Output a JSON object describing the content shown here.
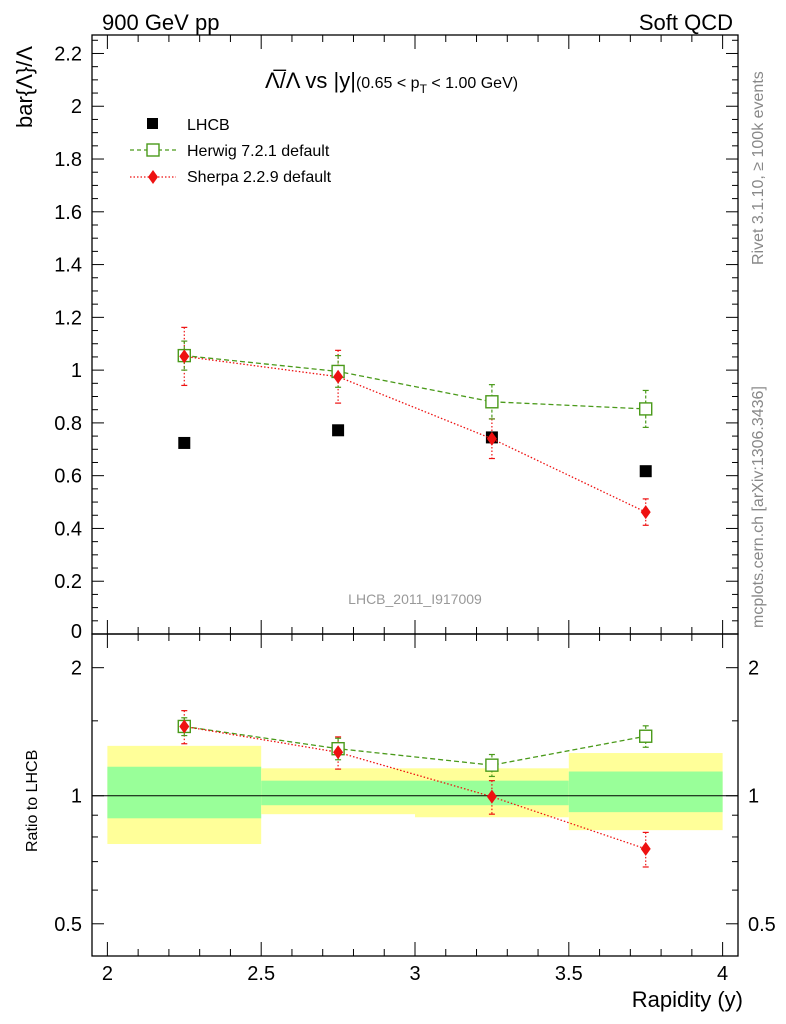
{
  "header": {
    "left": "900 GeV pp",
    "right": "Soft QCD"
  },
  "side_labels": {
    "rivet": "Rivet 3.1.10, ≥ 100k events",
    "mcplots": "mcplots.cern.ch [arXiv:1306.3436]"
  },
  "plot_title": {
    "main": "Λ̅/Λ vs |y|",
    "sub_prefix": "(0.65 < p",
    "sub_sub": "T",
    "sub_suffix": " < 1.00 GeV)"
  },
  "watermark": "LHCB_2011_I917009",
  "ylabel_top": "bar{Λ}/Λ",
  "ylabel_bottom": "Ratio to LHCB",
  "xlabel": "Rapidity (y)",
  "colors": {
    "herwig": "#4a9a1a",
    "sherpa": "#ee1111",
    "band_outer": "#ffff99",
    "band_inner": "#99ff99"
  },
  "chart_data": [
    {
      "type": "scatter",
      "panel": "main",
      "ylim": [
        0,
        2.27
      ],
      "xlim": [
        1.95,
        4.05
      ],
      "yticks": [
        "0",
        "0.2",
        "0.4",
        "0.6",
        "0.8",
        "1",
        "1.2",
        "1.4",
        "1.6",
        "1.8",
        "2",
        "2.2"
      ],
      "legend_position": "top-left",
      "series": [
        {
          "name": "LHCB",
          "x": [
            2.25,
            2.75,
            3.25,
            3.75
          ],
          "y": [
            0.724,
            0.772,
            0.745,
            0.617
          ],
          "bins": [
            [
              2.0,
              2.5
            ],
            [
              2.5,
              3.0
            ],
            [
              3.0,
              3.5
            ],
            [
              3.5,
              4.0
            ]
          ]
        },
        {
          "name": "Herwig 7.2.1 default",
          "x": [
            2.25,
            2.75,
            3.25,
            3.75
          ],
          "y": [
            1.055,
            0.995,
            0.88,
            0.853
          ],
          "yerr": [
            0.055,
            0.06,
            0.065,
            0.07
          ]
        },
        {
          "name": "Sherpa 2.2.9 default",
          "x": [
            2.25,
            2.75,
            3.25,
            3.75
          ],
          "y": [
            1.052,
            0.975,
            0.74,
            0.462
          ],
          "yerr": [
            0.11,
            0.1,
            0.075,
            0.05
          ]
        }
      ]
    },
    {
      "type": "scatter",
      "panel": "ratio",
      "ylabel": "Ratio to LHCB",
      "xlabel": "Rapidity (y)",
      "scale": "log",
      "ylim": [
        0.42,
        2.4
      ],
      "xlim": [
        1.95,
        4.05
      ],
      "yticks": [
        "0.5",
        "1",
        "2"
      ],
      "xticks": [
        "2",
        "2.5",
        "3",
        "3.5",
        "4"
      ],
      "reference_line": 1,
      "bands": {
        "bins": [
          [
            2.0,
            2.5
          ],
          [
            2.5,
            3.0
          ],
          [
            3.0,
            3.5
          ],
          [
            3.5,
            4.0
          ]
        ],
        "outer": [
          [
            0.77,
            1.31
          ],
          [
            0.905,
            1.16
          ],
          [
            0.89,
            1.16
          ],
          [
            0.83,
            1.26
          ]
        ],
        "inner": [
          [
            0.885,
            1.17
          ],
          [
            0.95,
            1.085
          ],
          [
            0.95,
            1.085
          ],
          [
            0.915,
            1.14
          ]
        ]
      },
      "series": [
        {
          "name": "Herwig 7.2.1 default",
          "x": [
            2.25,
            2.75,
            3.25,
            3.75
          ],
          "y": [
            1.455,
            1.29,
            1.18,
            1.38
          ],
          "yerr": [
            0.07,
            0.075,
            0.07,
            0.08
          ]
        },
        {
          "name": "Sherpa 2.2.9 default",
          "x": [
            2.25,
            2.75,
            3.25,
            3.75
          ],
          "y": [
            1.455,
            1.265,
            0.995,
            0.75
          ],
          "yerr": [
            0.13,
            0.11,
            0.09,
            0.07
          ]
        }
      ]
    }
  ]
}
